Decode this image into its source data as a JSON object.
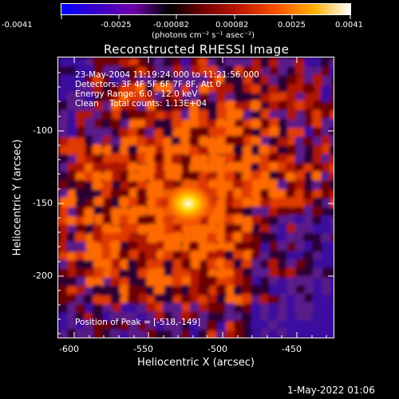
{
  "colorbar": {
    "tick_labels": [
      "-0.0041",
      "-0.0025",
      "-0.00082",
      "0.00082",
      "0.0025",
      "0.0041"
    ],
    "unit_label": "(photons cm⁻² s⁻¹ asec⁻²)",
    "colormap_stops": [
      "#0000ff",
      "#3b00c8",
      "#6d00a8",
      "#000000",
      "#7a0000",
      "#c21a00",
      "#ff5500",
      "#ffb000",
      "#ffffff"
    ]
  },
  "plot": {
    "title": "Reconstructed RHESSI Image",
    "x_axis_title": "Heliocentric X (arcsec)",
    "y_axis_title": "Heliocentric Y (arcsec)",
    "x_tick_labels": [
      "-600",
      "-550",
      "-500",
      "-450"
    ],
    "y_tick_labels": [
      "-100",
      "-150",
      "-200"
    ],
    "overlay_lines": [
      "23-May-2004 11:19:24.000 to 11:21:56.000",
      "Detectors: 3F 4F 5F 6F 7F 8F, Att 0",
      "Energy Range: 6.0 - 12.0 keV",
      "Clean    Total counts: 1.13E+04"
    ],
    "peak_label": "Position of Peak = [-518,-149]"
  },
  "footer": {
    "date_stamp": "1-May-2022 01:06"
  }
}
